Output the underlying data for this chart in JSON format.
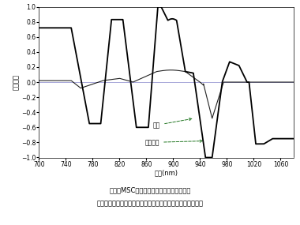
{
  "title": "",
  "xlabel": "波長(nm)",
  "ylabel": "相関係数",
  "xmin": 700,
  "xmax": 1080,
  "ymin": -1.0,
  "ymax": 1.0,
  "yticks": [
    -1.0,
    -0.8,
    -0.6,
    -0.4,
    -0.2,
    0.0,
    0.2,
    0.4,
    0.6,
    0.8,
    1.0
  ],
  "xticks": [
    700,
    740,
    780,
    820,
    860,
    900,
    940,
    980,
    1020,
    1060
  ],
  "background_color": "#ffffff",
  "annotation_fat": "脂肪",
  "annotation_corr": "相関係数"
}
